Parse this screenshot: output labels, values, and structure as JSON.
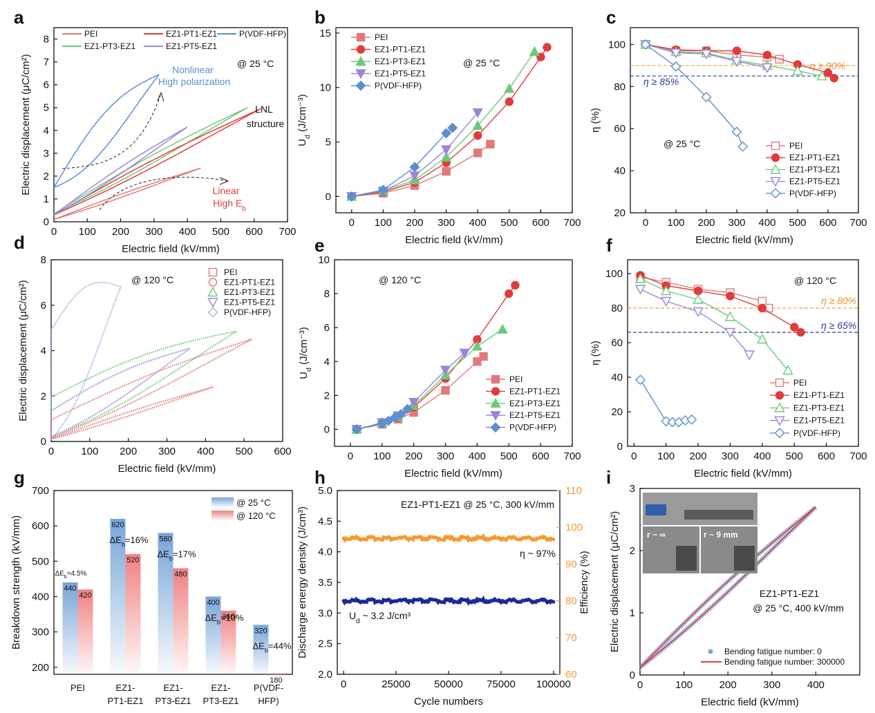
{
  "figure": {
    "panel_letters": [
      "a",
      "b",
      "c",
      "d",
      "e",
      "f",
      "g",
      "h",
      "i"
    ]
  },
  "chart_data": [
    {
      "panel": "a",
      "type": "line",
      "xlabel": "Electric field (kV/mm)",
      "ylabel": "Electric displacement (μC/cm²)",
      "xlim": [
        0,
        700
      ],
      "ylim": [
        0,
        8.5
      ],
      "xticks": [
        0,
        100,
        200,
        300,
        400,
        500,
        600,
        700
      ],
      "yticks": [
        0,
        1,
        2,
        3,
        4,
        5,
        6,
        7,
        8
      ],
      "legend": [
        "PEI",
        "EZ1-PT1-EZ1",
        "P(VDF-HFP)",
        "EZ1-PT3-EZ1",
        "EZ1-PT5-EZ1"
      ],
      "legend_position": "top-left",
      "colors": {
        "PEI": "#e07a7a",
        "EZ1-PT1-EZ1": "#e03c3c",
        "P(VDF-HFP)": "#5b8fcf",
        "EZ1-PT3-EZ1": "#6dca7a",
        "EZ1-PT5-EZ1": "#9a86d6"
      },
      "loops": [
        {
          "name": "P(VDF-HFP)",
          "x_max": 315,
          "y_max": 6.45,
          "y_remnant": 1.5,
          "y_return": 1.5,
          "bulge": 1.1
        },
        {
          "name": "EZ1-PT3-EZ1",
          "x_max": 580,
          "y_max": 5.0,
          "y_remnant": 0.35,
          "y_return": 0.35,
          "bulge": 0.25
        },
        {
          "name": "EZ1-PT1-EZ1",
          "x_max": 620,
          "y_max": 4.95,
          "y_remnant": 0.3,
          "y_return": 0.3,
          "bulge": 0.22
        },
        {
          "name": "EZ1-PT5-EZ1",
          "x_max": 400,
          "y_max": 4.15,
          "y_remnant": 0.3,
          "y_return": 0.3,
          "bulge": 0.2
        },
        {
          "name": "PEI",
          "x_max": 440,
          "y_max": 2.35,
          "y_remnant": 0.1,
          "y_return": 0.1,
          "bulge": 0.1
        }
      ],
      "annotations": [
        "@ 25 °C",
        "Nonlinear",
        "High polarization",
        "LNL",
        "structure",
        "Linear",
        "High E_b"
      ]
    },
    {
      "panel": "b",
      "type": "line",
      "xlabel": "Electric field (kV/mm)",
      "ylabel": "U_d (J/cm⁻³)",
      "xlim": [
        -50,
        700
      ],
      "ylim": [
        -1.5,
        15.5
      ],
      "xticks": [
        0,
        100,
        200,
        300,
        400,
        500,
        600,
        700
      ],
      "yticks": [
        0,
        5,
        10,
        15
      ],
      "legend_position": "top-left",
      "annotations": [
        "@ 25 °C"
      ],
      "series": [
        {
          "name": "PEI",
          "marker": "square",
          "color": "#e07a7a",
          "x": [
            0,
            100,
            200,
            300,
            400,
            440
          ],
          "y": [
            0,
            0.3,
            1.0,
            2.3,
            4.0,
            4.8
          ]
        },
        {
          "name": "EZ1-PT1-EZ1",
          "marker": "circle",
          "color": "#e03c3c",
          "x": [
            0,
            100,
            200,
            300,
            400,
            500,
            600,
            620
          ],
          "y": [
            0,
            0.4,
            1.3,
            3.1,
            5.6,
            8.7,
            12.8,
            13.7
          ]
        },
        {
          "name": "EZ1-PT3-EZ1",
          "marker": "triangle-up",
          "color": "#6dca7a",
          "x": [
            0,
            100,
            200,
            300,
            400,
            500,
            580
          ],
          "y": [
            0,
            0.5,
            1.5,
            3.6,
            6.5,
            9.9,
            13.3
          ]
        },
        {
          "name": "EZ1-PT5-EZ1",
          "marker": "triangle-down",
          "color": "#9a86d6",
          "x": [
            0,
            100,
            200,
            300,
            400
          ],
          "y": [
            0,
            0.5,
            1.9,
            4.3,
            7.7
          ]
        },
        {
          "name": "P(VDF-HFP)",
          "marker": "diamond",
          "color": "#5b8fcf",
          "x": [
            0,
            100,
            200,
            300,
            320
          ],
          "y": [
            0,
            0.6,
            2.7,
            5.8,
            6.3
          ]
        }
      ]
    },
    {
      "panel": "c",
      "type": "line",
      "xlabel": "Electric field (kV/mm)",
      "ylabel": "η (%)",
      "xlim": [
        -50,
        700
      ],
      "ylim": [
        20,
        108
      ],
      "xticks": [
        0,
        100,
        200,
        300,
        400,
        500,
        600,
        700
      ],
      "yticks": [
        20,
        40,
        60,
        80,
        100
      ],
      "legend_position": "bottom-right",
      "annotations": [
        "@ 25 °C"
      ],
      "reference_lines": [
        {
          "label": "η ≥ 90%",
          "y": 90,
          "color": "#f0a040"
        },
        {
          "label": "η ≥ 85%",
          "y": 85,
          "color": "#2a3aa0"
        }
      ],
      "series": [
        {
          "name": "PEI",
          "marker": "square",
          "color": "#e07a7a",
          "x": [
            0,
            100,
            200,
            300,
            400,
            440
          ],
          "y": [
            100,
            97,
            97,
            95,
            94,
            93
          ]
        },
        {
          "name": "EZ1-PT1-EZ1",
          "marker": "circle",
          "color": "#e03c3c",
          "x": [
            0,
            100,
            200,
            300,
            400,
            500,
            600,
            620
          ],
          "y": [
            100,
            97.5,
            97,
            97,
            95,
            90.5,
            86.5,
            84
          ]
        },
        {
          "name": "EZ1-PT3-EZ1",
          "marker": "triangle-up",
          "color": "#6dca7a",
          "x": [
            0,
            100,
            200,
            300,
            400,
            500,
            580
          ],
          "y": [
            100,
            96.5,
            96,
            92.5,
            90,
            87.5,
            85
          ]
        },
        {
          "name": "EZ1-PT5-EZ1",
          "marker": "triangle-down",
          "color": "#9a86d6",
          "x": [
            0,
            100,
            200,
            300,
            400
          ],
          "y": [
            100,
            96,
            95.5,
            92,
            89
          ]
        },
        {
          "name": "P(VDF-HFP)",
          "marker": "diamond",
          "color": "#5b8fcf",
          "x": [
            0,
            100,
            200,
            300,
            320
          ],
          "y": [
            100,
            89.5,
            75,
            58.5,
            51.5
          ]
        }
      ]
    },
    {
      "panel": "d",
      "type": "line",
      "xlabel": "Electric field (kV/mm)",
      "ylabel": "Electric displacement (μC/cm²)",
      "xlim": [
        0,
        600
      ],
      "ylim": [
        0,
        8
      ],
      "xticks": [
        0,
        100,
        200,
        300,
        400,
        500,
        600
      ],
      "yticks": [
        0,
        2,
        4,
        6,
        8
      ],
      "legend": [
        "PEI",
        "EZ1-PT1-EZ1",
        "EZ1-PT3-EZ1",
        "EZ1-PT5-EZ1",
        "P(VDF-HFP)"
      ],
      "legend_position": "top-right",
      "colors": {
        "PEI": "#e07a7a",
        "EZ1-PT1-EZ1": "#e07a7a",
        "EZ1-PT3-EZ1": "#6dca7a",
        "EZ1-PT5-EZ1": "#9a86d6",
        "P(VDF-HFP)": "#9ab8e0"
      },
      "loops": [
        {
          "name": "P(VDF-HFP)",
          "x_max": 180,
          "y_max": 6.8,
          "y_remnant": 0.1,
          "y_return": 4.9,
          "bulge": 1.2
        },
        {
          "name": "EZ1-PT3-EZ1",
          "x_max": 480,
          "y_max": 4.85,
          "y_remnant": 0.2,
          "y_return": 1.95,
          "bulge": 0.5
        },
        {
          "name": "EZ1-PT1-EZ1",
          "x_max": 520,
          "y_max": 4.5,
          "y_remnant": 0.15,
          "y_return": 0.95,
          "bulge": 0.3
        },
        {
          "name": "EZ1-PT5-EZ1",
          "x_max": 360,
          "y_max": 4.1,
          "y_remnant": 0.2,
          "y_return": 1.35,
          "bulge": 0.4
        },
        {
          "name": "PEI",
          "x_max": 420,
          "y_max": 2.4,
          "y_remnant": 0.1,
          "y_return": 0.1,
          "bulge": 0.12
        }
      ],
      "annotations": [
        "@ 120 °C"
      ]
    },
    {
      "panel": "e",
      "type": "line",
      "xlabel": "Electric field (kV/mm)",
      "ylabel": "U_d (J/cm⁻³)",
      "xlim": [
        -50,
        700
      ],
      "ylim": [
        -1,
        10
      ],
      "xticks": [
        0,
        100,
        200,
        300,
        400,
        500,
        600,
        700
      ],
      "yticks": [
        0,
        2,
        4,
        6,
        8,
        10
      ],
      "legend_position": "bottom-right",
      "annotations": [
        "@ 120 °C"
      ],
      "series": [
        {
          "name": "PEI",
          "marker": "square",
          "color": "#e07a7a",
          "x": [
            20,
            100,
            150,
            200,
            300,
            400,
            420
          ],
          "y": [
            0,
            0.3,
            0.6,
            1.0,
            2.3,
            4.0,
            4.3
          ]
        },
        {
          "name": "EZ1-PT1-EZ1",
          "marker": "circle",
          "color": "#e03c3c",
          "x": [
            20,
            100,
            150,
            200,
            300,
            400,
            500,
            520
          ],
          "y": [
            0,
            0.35,
            0.7,
            1.3,
            3.0,
            5.3,
            8.0,
            8.5
          ]
        },
        {
          "name": "EZ1-PT3-EZ1",
          "marker": "triangle-up",
          "color": "#6dca7a",
          "x": [
            20,
            100,
            150,
            200,
            300,
            400,
            480
          ],
          "y": [
            0,
            0.4,
            0.75,
            1.4,
            3.2,
            4.9,
            5.9
          ]
        },
        {
          "name": "EZ1-PT5-EZ1",
          "marker": "triangle-down",
          "color": "#9a86d6",
          "x": [
            20,
            100,
            150,
            200,
            300,
            360
          ],
          "y": [
            0,
            0.4,
            0.8,
            1.6,
            3.5,
            4.5
          ]
        },
        {
          "name": "P(VDF-HFP)",
          "marker": "diamond",
          "color": "#5b8fcf",
          "x": [
            20,
            100,
            120,
            140,
            160,
            180
          ],
          "y": [
            0,
            0.35,
            0.5,
            0.7,
            0.9,
            1.2
          ]
        }
      ]
    },
    {
      "panel": "f",
      "type": "line",
      "xlabel": "Electric field (kV/mm)",
      "ylabel": "η (%)",
      "xlim": [
        -20,
        700
      ],
      "ylim": [
        0,
        108
      ],
      "xticks": [
        0,
        100,
        200,
        300,
        400,
        500,
        600,
        700
      ],
      "yticks": [
        0,
        20,
        40,
        60,
        80,
        100
      ],
      "legend_position": "bottom-right",
      "annotations": [
        "@ 120 °C"
      ],
      "reference_lines": [
        {
          "label": "η ≥ 80%",
          "y": 80,
          "color": "#f0a040"
        },
        {
          "label": "η ≥ 65%",
          "y": 66,
          "color": "#2a3aa0"
        }
      ],
      "series": [
        {
          "name": "PEI",
          "marker": "square",
          "color": "#e07a7a",
          "x": [
            20,
            100,
            200,
            300,
            400,
            420
          ],
          "y": [
            98,
            95,
            91,
            89,
            84,
            80
          ]
        },
        {
          "name": "EZ1-PT1-EZ1",
          "marker": "circle",
          "color": "#e03c3c",
          "x": [
            20,
            100,
            200,
            300,
            400,
            500,
            520
          ],
          "y": [
            99,
            93,
            90,
            87,
            80,
            69,
            66
          ]
        },
        {
          "name": "EZ1-PT3-EZ1",
          "marker": "triangle-up",
          "color": "#6dca7a",
          "x": [
            20,
            100,
            200,
            300,
            400,
            480
          ],
          "y": [
            97,
            90,
            85,
            75,
            62,
            44
          ]
        },
        {
          "name": "EZ1-PT5-EZ1",
          "marker": "triangle-down",
          "color": "#9a86d6",
          "x": [
            20,
            100,
            200,
            300,
            360
          ],
          "y": [
            91,
            84,
            78,
            66,
            53
          ]
        },
        {
          "name": "P(VDF-HFP)",
          "marker": "diamond",
          "color": "#5b8fcf",
          "x": [
            20,
            100,
            120,
            140,
            160,
            180
          ],
          "y": [
            38.5,
            14.5,
            14,
            14,
            15,
            15.5
          ]
        }
      ]
    },
    {
      "panel": "g",
      "type": "bar",
      "ylabel": "Breakdown strength (kV/mm)",
      "ylim": [
        180,
        700
      ],
      "yticks": [
        200,
        300,
        400,
        500,
        600,
        700
      ],
      "categories": [
        "PEI",
        "EZ1-\nPT1-EZ1",
        "EZ1-\nPT3-EZ1",
        "EZ1-\nPT3-EZ1",
        "P(VDF-\nHFP)"
      ],
      "legend_position": "top-right",
      "series": [
        {
          "name": "@ 25 °C",
          "color": "#6fa0d8",
          "values": [
            440,
            620,
            580,
            400,
            320
          ]
        },
        {
          "name": "@ 120 °C",
          "color": "#f07a7a",
          "values": [
            420,
            520,
            480,
            360,
            180
          ]
        }
      ],
      "drops": [
        "ΔE_b=4.5%",
        "ΔE_b=16%",
        "ΔE_b=17%",
        "ΔE_b=10%",
        "ΔE_b=44%"
      ]
    },
    {
      "panel": "h",
      "type": "line",
      "xlabel": "Cycle numbers",
      "ylabel": "Discharge energy density (J/cm³)",
      "y2label": "Efficiency (%)",
      "xlim": [
        -3000,
        103000
      ],
      "ylim": [
        2.0,
        5.0
      ],
      "y2lim": [
        60,
        110
      ],
      "xticks": [
        0,
        25000,
        50000,
        75000,
        100000
      ],
      "yticks": [
        2.0,
        2.5,
        3.0,
        3.5,
        4.0,
        4.5,
        5.0
      ],
      "y2ticks": [
        60,
        70,
        80,
        90,
        100,
        110
      ],
      "annotations": [
        "EZ1-PT1-EZ1 @ 25 °C, 300 kV/mm",
        "η ~ 97%",
        "U_d ~ 3.2 J/cm³"
      ],
      "series": [
        {
          "axis": "right",
          "color": "#f59a30",
          "x": [
            0,
            100000
          ],
          "y": [
            97,
            97
          ]
        },
        {
          "axis": "left",
          "color": "#1a2a9a",
          "x": [
            0,
            100000
          ],
          "y": [
            3.2,
            3.2
          ]
        }
      ]
    },
    {
      "panel": "i",
      "type": "line",
      "xlabel": "Electric field (kV/mm)",
      "ylabel": "Electric displacement (μC/cm²)",
      "xlim": [
        0,
        500
      ],
      "ylim": [
        0,
        3
      ],
      "xticks": [
        0,
        100,
        200,
        300,
        400
      ],
      "yticks": [
        0,
        1,
        2,
        3
      ],
      "legend_position": "bottom-right",
      "annotations": [
        "EZ1-PT1-EZ1",
        "@ 25 °C, 400 kV/mm",
        "r ~ ∞",
        "r ~ 9 mm"
      ],
      "loops": [
        {
          "name": "Bending fatigue number: 0",
          "color": "#7aa6d8",
          "x_max": 400,
          "y_max": 2.7,
          "y_remnant": 0.12,
          "y_return": 0.12,
          "bulge": 0.12
        },
        {
          "name": "Bending fatigue number: 300000",
          "color": "#e03c3c",
          "x_max": 400,
          "y_max": 2.7,
          "y_remnant": 0.12,
          "y_return": 0.12,
          "bulge": 0.12
        }
      ]
    }
  ]
}
